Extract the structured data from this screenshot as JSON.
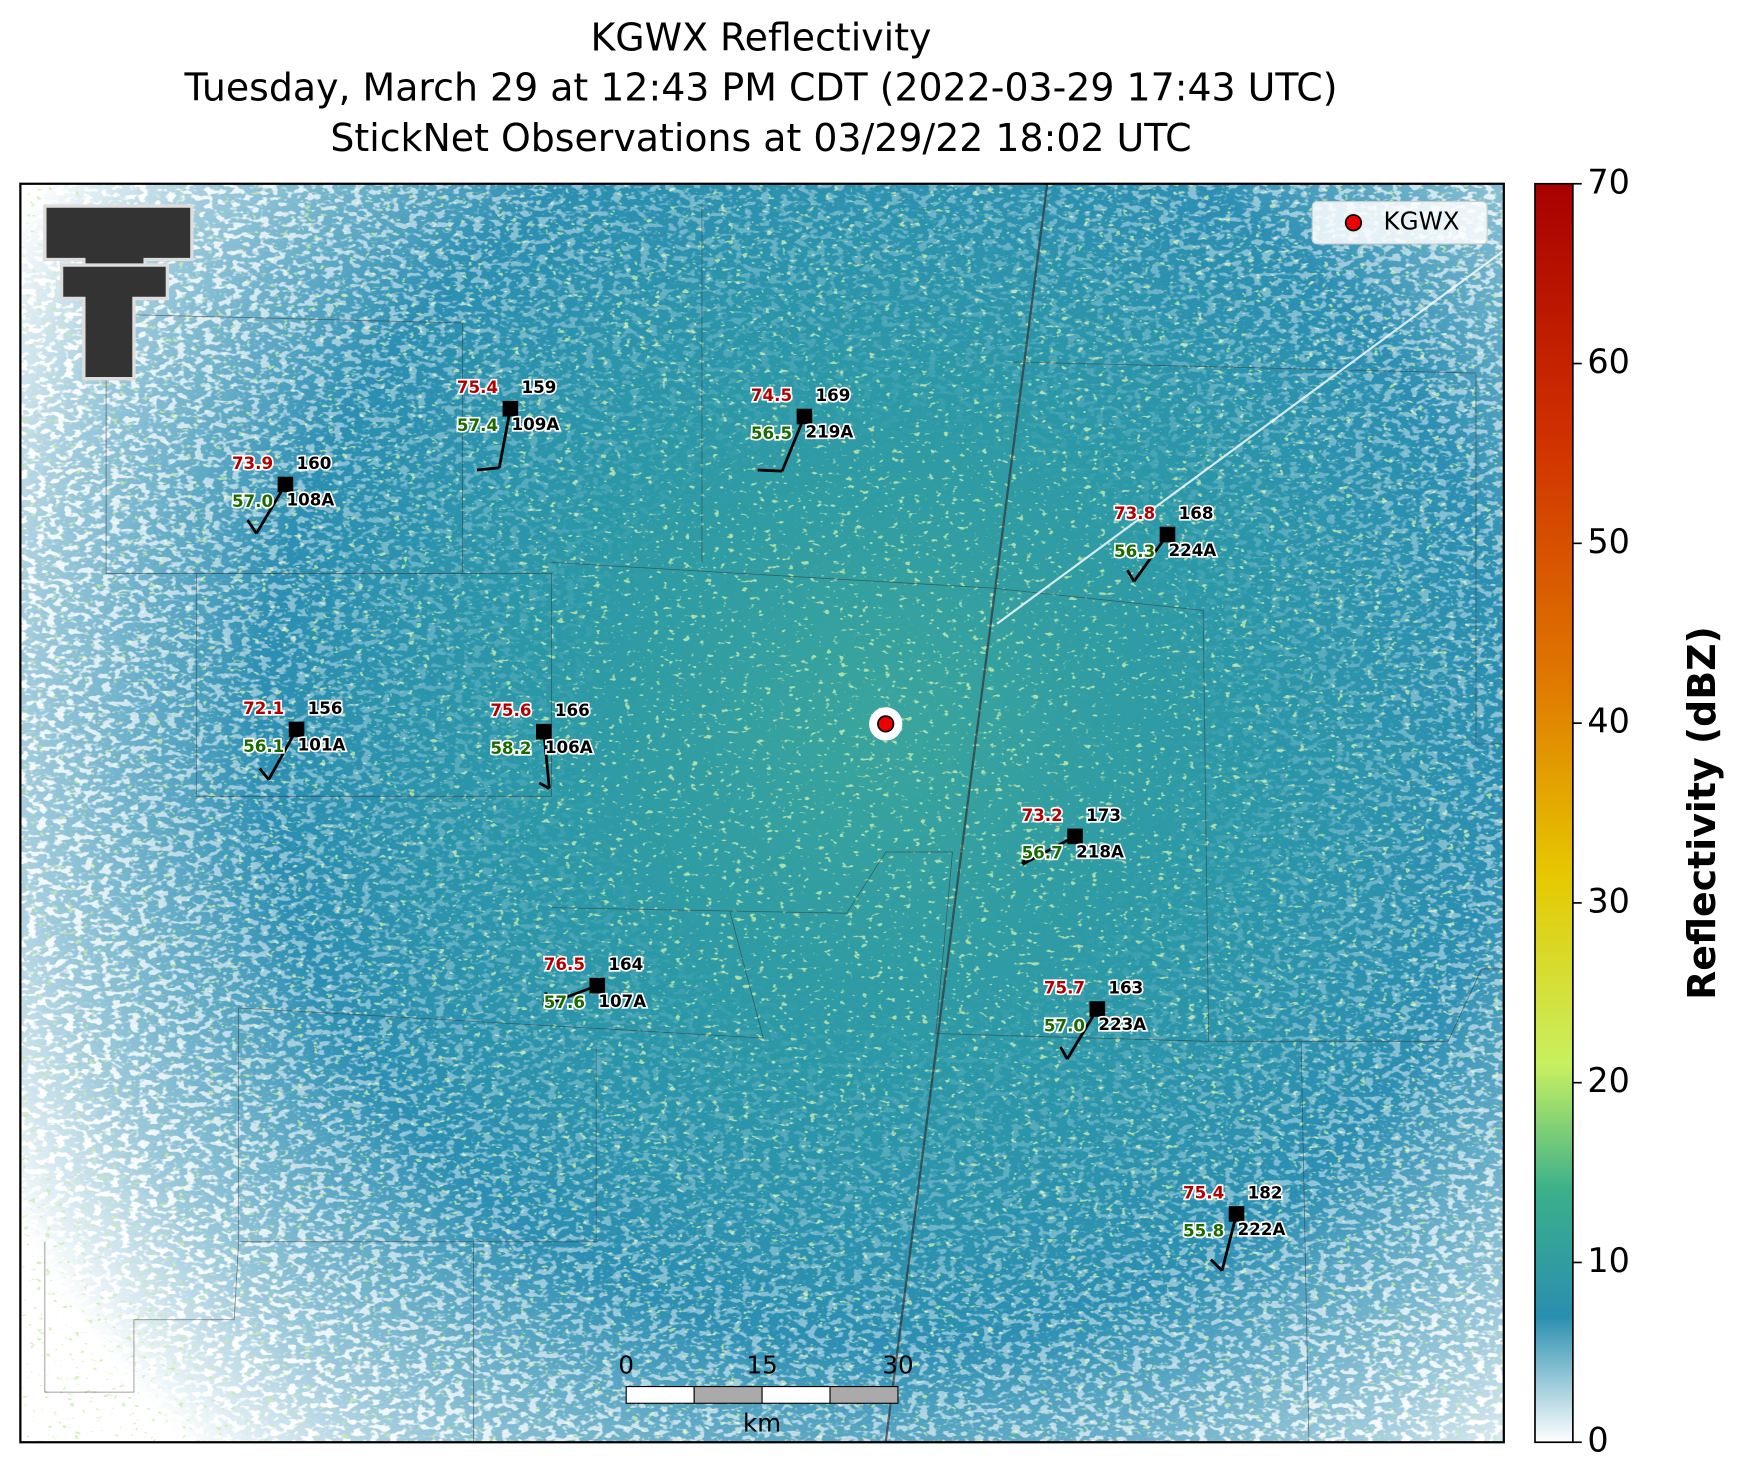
{
  "title": [
    "KGWX Reflectivity",
    "Tuesday, March 29 at 12:43 PM CDT (2022-03-29 17:43 UTC)",
    "StickNet Observations at 03/29/22 18:02 UTC"
  ],
  "legend": "KGWX",
  "colorbar": {
    "label": "Reflectivity (dBZ)",
    "lim": [
      0,
      70
    ],
    "ticks": [
      0,
      10,
      20,
      30,
      40,
      50,
      60,
      70
    ]
  },
  "scale_bar": {
    "ticks": [
      0,
      15,
      30
    ],
    "unit": "km"
  },
  "stations": [
    {
      "id": "159",
      "temperature": "75.4",
      "dewpoint": "57.4",
      "probe": "109A"
    },
    {
      "id": "169",
      "temperature": "74.5",
      "dewpoint": "56.5",
      "probe": "219A"
    },
    {
      "id": "160",
      "temperature": "73.9",
      "dewpoint": "57.0",
      "probe": "108A"
    },
    {
      "id": "168",
      "temperature": "73.8",
      "dewpoint": "56.3",
      "probe": "224A"
    },
    {
      "id": "156",
      "temperature": "72.1",
      "dewpoint": "56.1",
      "probe": "101A"
    },
    {
      "id": "166",
      "temperature": "75.6",
      "dewpoint": "58.2",
      "probe": "106A"
    },
    {
      "id": "173",
      "temperature": "73.2",
      "dewpoint": "56.7",
      "probe": "218A"
    },
    {
      "id": "164",
      "temperature": "76.5",
      "dewpoint": "57.6",
      "probe": "107A"
    },
    {
      "id": "163",
      "temperature": "75.7",
      "dewpoint": "57.0",
      "probe": "223A"
    },
    {
      "id": "182",
      "temperature": "75.4",
      "dewpoint": "55.8",
      "probe": "222A"
    }
  ]
}
